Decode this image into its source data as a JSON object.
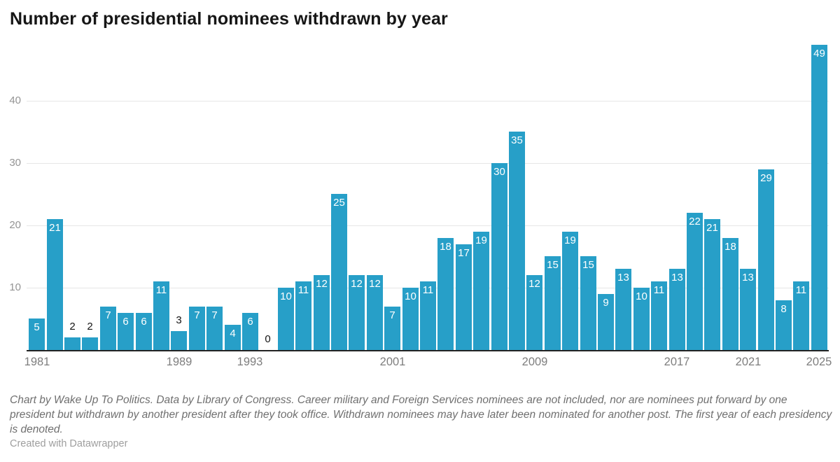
{
  "title": "Number of presidential nominees withdrawn by year",
  "chart_data": {
    "type": "bar",
    "title": "Number of presidential nominees withdrawn by year",
    "x": [
      1981,
      1982,
      1983,
      1984,
      1985,
      1986,
      1987,
      1988,
      1989,
      1990,
      1991,
      1992,
      1993,
      1994,
      1995,
      1996,
      1997,
      1998,
      1999,
      2000,
      2001,
      2002,
      2003,
      2004,
      2005,
      2006,
      2007,
      2008,
      2009,
      2010,
      2011,
      2012,
      2013,
      2014,
      2015,
      2016,
      2017,
      2018,
      2019,
      2020,
      2021,
      2022,
      2023,
      2024,
      2025
    ],
    "values": [
      5,
      21,
      2,
      2,
      7,
      6,
      6,
      11,
      3,
      7,
      7,
      4,
      6,
      0,
      10,
      11,
      12,
      25,
      12,
      12,
      7,
      10,
      11,
      18,
      17,
      19,
      30,
      35,
      12,
      15,
      19,
      15,
      9,
      13,
      10,
      11,
      13,
      22,
      21,
      18,
      13,
      29,
      8,
      11,
      49
    ],
    "x_tick_labels": [
      "1981",
      "1989",
      "1993",
      "2001",
      "2009",
      "2017",
      "2021",
      "2025"
    ],
    "y_ticks": [
      10,
      20,
      30,
      40
    ],
    "ylim": [
      0,
      49
    ],
    "xlabel": "",
    "ylabel": "",
    "grid": "horizontal",
    "legend": "none",
    "value_labels": "on-every-bar",
    "bar_color": "#279fc8",
    "value_label_inside_color": "#ffffff",
    "value_label_outside_color": "#141414"
  },
  "footer": {
    "notes": "Chart by Wake Up To Politics. Data by Library of Congress. Career military and Foreign Services nominees are not included, nor are nominees put forward by one president but withdrawn by another president after they took office. Withdrawn nominees may have later been nominated for another post. The first year of each presidency is denoted.",
    "credit": "Created with Datawrapper"
  }
}
